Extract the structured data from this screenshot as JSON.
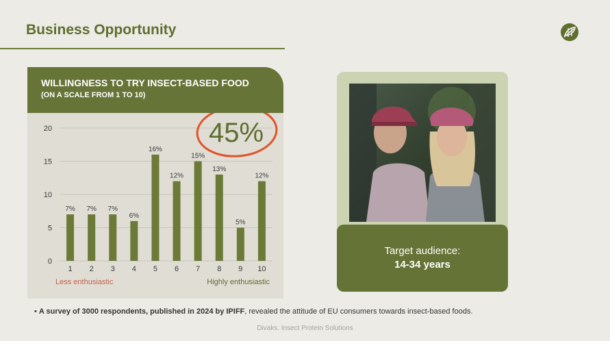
{
  "slide": {
    "title": "Business Opportunity",
    "footer": "Divaks. Insect Protein Solutions"
  },
  "logo": {
    "icon": "leaf-logo-icon",
    "color": "#5e6e2e"
  },
  "chart_data": {
    "type": "bar",
    "title": "WILLINGNESS TO TRY INSECT-BASED FOOD",
    "subtitle": "(ON A SCALE FROM 1 TO 10)",
    "categories": [
      "1",
      "2",
      "3",
      "4",
      "5",
      "6",
      "7",
      "8",
      "9",
      "10"
    ],
    "values": [
      7,
      7,
      7,
      6,
      16,
      12,
      15,
      13,
      5,
      12
    ],
    "data_labels": [
      "7%",
      "7%",
      "7%",
      "6%",
      "16%",
      "12%",
      "15%",
      "13%",
      "5%",
      "12%"
    ],
    "y_ticks": [
      0,
      5,
      10,
      15,
      20
    ],
    "ylim": [
      0,
      20
    ],
    "grid": true,
    "bar_color": "#6b7a36",
    "axis_note_left": "Less enthusiastic",
    "axis_note_right": "Highly enthusiastic",
    "axis_note_left_color": "#c0624a",
    "axis_note_right_color": "#5e6e2e",
    "highlight": {
      "text": "45%",
      "color": "#5e6e2e",
      "circle_color": "#e0522a"
    }
  },
  "audience": {
    "label": "Target audience:",
    "value": "14-34 years"
  },
  "footnote": {
    "bold": "A survey of 3000 respondents, published in 2024 by IPIFF",
    "rest": ", revealed the attitude of EU consumers towards insect-based foods."
  }
}
